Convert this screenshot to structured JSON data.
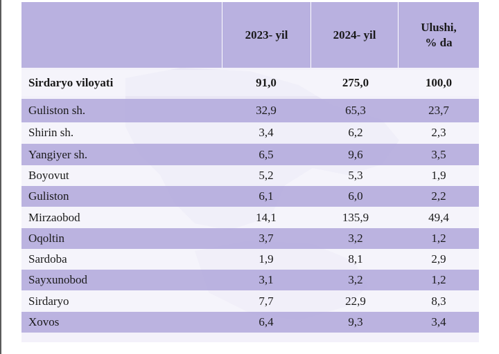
{
  "header": {
    "col1": "2023- yil",
    "col2": "2024- yil",
    "col3_line1": "Ulushi,",
    "col3_line2": "% da"
  },
  "total": {
    "name": "Sirdaryo viloyati",
    "y2023": "91,0",
    "y2024": "275,0",
    "share": "100,0"
  },
  "rows": [
    {
      "name": "Guliston sh.",
      "y2023": "32,9",
      "y2024": "65,3",
      "share": "23,7"
    },
    {
      "name": "Shirin sh.",
      "y2023": "3,4",
      "y2024": "6,2",
      "share": "2,3"
    },
    {
      "name": "Yangiyer sh.",
      "y2023": "6,5",
      "y2024": "9,6",
      "share": "3,5"
    },
    {
      "name": "Boyovut",
      "y2023": "5,2",
      "y2024": "5,3",
      "share": "1,9"
    },
    {
      "name": "Guliston",
      "y2023": "6,1",
      "y2024": "6,0",
      "share": "2,2"
    },
    {
      "name": "Mirzaobod",
      "y2023": "14,1",
      "y2024": "135,9",
      "share": "49,4"
    },
    {
      "name": "Oqoltin",
      "y2023": "3,7",
      "y2024": "3,2",
      "share": "1,2"
    },
    {
      "name": "Sardoba",
      "y2023": "1,9",
      "y2024": "8,1",
      "share": "2,9"
    },
    {
      "name": "Sayxunobod",
      "y2023": "3,1",
      "y2024": "3,2",
      "share": "1,2"
    },
    {
      "name": "Sirdaryo",
      "y2023": "7,7",
      "y2024": "22,9",
      "share": "8,3"
    },
    {
      "name": "Xovos",
      "y2023": "6,4",
      "y2024": "9,3",
      "share": "3,4"
    }
  ]
}
